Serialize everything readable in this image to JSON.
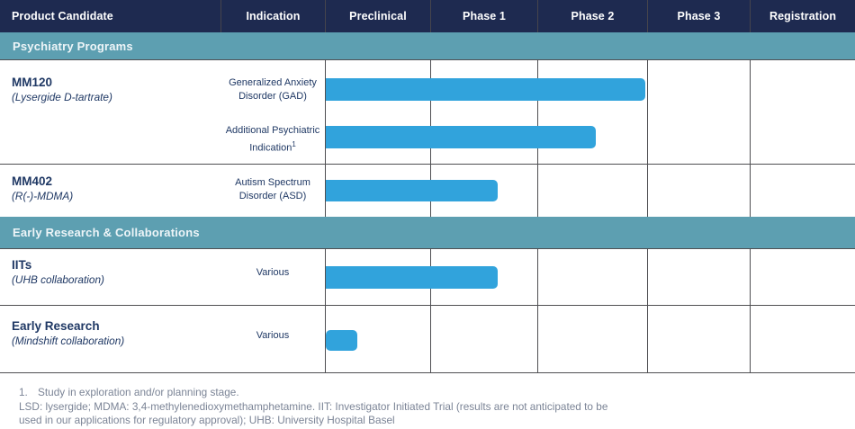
{
  "header": {
    "columns": [
      "Product Candidate",
      "Indication",
      "Preclinical",
      "Phase 1",
      "Phase 2",
      "Phase 3",
      "Registration"
    ]
  },
  "sections": {
    "psychiatry": {
      "title": "Psychiatry Programs"
    },
    "early": {
      "title": "Early Research & Collaborations"
    }
  },
  "programs": {
    "mm120": {
      "name": "MM120",
      "subtitle": "(Lysergide D-tartrate)",
      "indications": {
        "gad": {
          "line1": "Generalized Anxiety",
          "line2": "Disorder (GAD)"
        },
        "additional": {
          "line1": "Additional Psychiatric",
          "line2": "Indication",
          "superscript": "1"
        }
      }
    },
    "mm402": {
      "name": "MM402",
      "subtitle": "(R(-)-MDMA)",
      "indication": {
        "line1": "Autism Spectrum",
        "line2": "Disorder (ASD)"
      }
    },
    "iits": {
      "name": "IITs",
      "subtitle": "(UHB collaboration)",
      "indication": "Various"
    },
    "early_research": {
      "name": "Early Research",
      "subtitle": "(Mindshift collaboration)",
      "indication": "Various"
    }
  },
  "footnotes": {
    "item1_number": "1.",
    "item1_text": "Study in exploration and/or planning stage.",
    "line2": "LSD: lysergide; MDMA: 3,4-methylenedioxymethamphetamine. IIT: Investigator Initiated Trial (results are not anticipated to be",
    "line3": "used in our applications for regulatory approval); UHB: University Hospital Basel"
  },
  "colors": {
    "header_bg": "#1e2a50",
    "section_bg": "#5d9fb1",
    "bar_blue": "#31a3dc",
    "grid_line": "#4f4f52",
    "text_navy": "#1f3864",
    "footnote_gray": "#7b8496"
  },
  "chart_data": {
    "type": "bar",
    "variant": "pipeline-gantt",
    "title": "Clinical development pipeline",
    "stages": [
      "Preclinical",
      "Phase 1",
      "Phase 2",
      "Phase 3",
      "Registration"
    ],
    "grid": true,
    "rows": [
      {
        "section": "Psychiatry Programs",
        "product": "MM120 (Lysergide D-tartrate)",
        "indication": "Generalized Anxiety Disorder (GAD)",
        "bar_start": "Preclinical",
        "bar_end_stage": "Phase 2",
        "bar_end_fraction": 0.98
      },
      {
        "section": "Psychiatry Programs",
        "product": "MM120 (Lysergide D-tartrate)",
        "indication": "Additional Psychiatric Indication (1)",
        "bar_start": "Preclinical",
        "bar_end_stage": "Phase 2",
        "bar_end_fraction": 0.53
      },
      {
        "section": "Psychiatry Programs",
        "product": "MM402 (R(-)-MDMA)",
        "indication": "Autism Spectrum Disorder (ASD)",
        "bar_start": "Preclinical",
        "bar_end_stage": "Phase 1",
        "bar_end_fraction": 0.63
      },
      {
        "section": "Early Research & Collaborations",
        "product": "IITs (UHB collaboration)",
        "indication": "Various",
        "bar_start": "Preclinical",
        "bar_end_stage": "Phase 1",
        "bar_end_fraction": 0.63
      },
      {
        "section": "Early Research & Collaborations",
        "product": "Early Research (Mindshift collaboration)",
        "indication": "Various",
        "bar_start": "Preclinical",
        "bar_end_stage": "Preclinical",
        "bar_end_fraction": 0.31
      }
    ],
    "bars": {
      "gad": {
        "start": "Preclinical",
        "end_stage": "Phase 2",
        "end_fraction": 0.98
      },
      "additional": {
        "start": "Preclinical",
        "end_stage": "Phase 2",
        "end_fraction": 0.53
      },
      "asd": {
        "start": "Preclinical",
        "end_stage": "Phase 1",
        "end_fraction": 0.63
      },
      "iits": {
        "start": "Preclinical",
        "end_stage": "Phase 1",
        "end_fraction": 0.63
      },
      "early": {
        "start": "Preclinical",
        "end_stage": "Preclinical",
        "end_fraction": 0.31
      }
    }
  }
}
